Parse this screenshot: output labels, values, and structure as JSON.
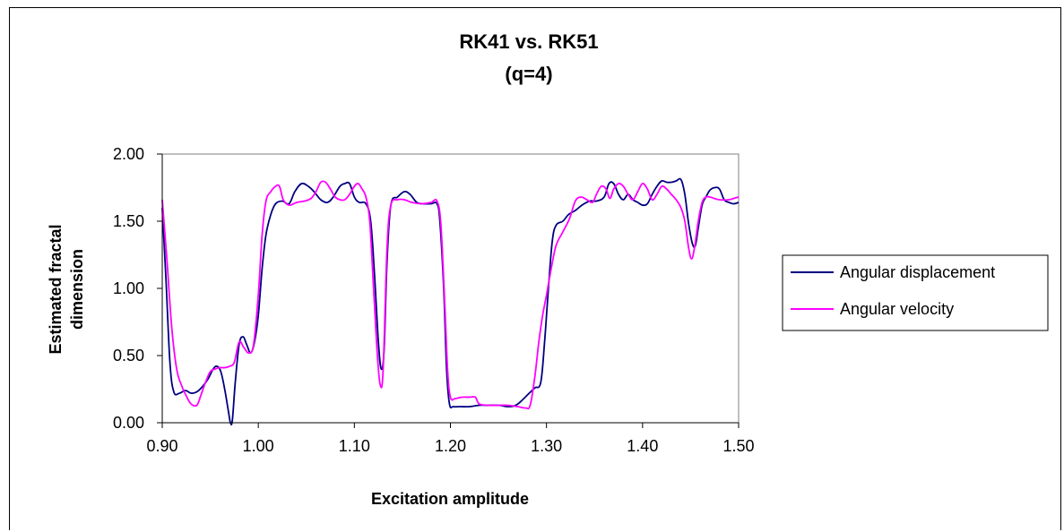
{
  "chart_data": {
    "type": "line",
    "title_lines": [
      "RK41 vs. RK51",
      "(q=4)"
    ],
    "xlabel": "Excitation amplitude",
    "ylabel_lines": [
      "Estimated fractal",
      "dimension"
    ],
    "xlim": [
      0.9,
      1.5
    ],
    "ylim": [
      0,
      2
    ],
    "x_ticks": [
      "0.90",
      "1.00",
      "1.10",
      "1.20",
      "1.30",
      "1.40",
      "1.50"
    ],
    "y_ticks": [
      "0.00",
      "0.50",
      "1.00",
      "1.50",
      "2.00"
    ],
    "grid": false,
    "legend_position": "right",
    "series": [
      {
        "name": "Angular displacement",
        "color": "#000080",
        "points": [
          [
            0.9,
            1.6
          ],
          [
            0.904,
            1.05
          ],
          [
            0.908,
            0.45
          ],
          [
            0.912,
            0.23
          ],
          [
            0.918,
            0.22
          ],
          [
            0.924,
            0.24
          ],
          [
            0.93,
            0.22
          ],
          [
            0.936,
            0.23
          ],
          [
            0.942,
            0.27
          ],
          [
            0.948,
            0.33
          ],
          [
            0.953,
            0.4
          ],
          [
            0.957,
            0.42
          ],
          [
            0.961,
            0.38
          ],
          [
            0.965,
            0.25
          ],
          [
            0.969,
            0.08
          ],
          [
            0.971,
            0.0
          ],
          [
            0.973,
            0.02
          ],
          [
            0.976,
            0.3
          ],
          [
            0.98,
            0.58
          ],
          [
            0.984,
            0.64
          ],
          [
            0.988,
            0.58
          ],
          [
            0.992,
            0.52
          ],
          [
            0.996,
            0.6
          ],
          [
            1.0,
            0.8
          ],
          [
            1.004,
            1.15
          ],
          [
            1.008,
            1.4
          ],
          [
            1.013,
            1.55
          ],
          [
            1.018,
            1.63
          ],
          [
            1.025,
            1.65
          ],
          [
            1.032,
            1.63
          ],
          [
            1.038,
            1.72
          ],
          [
            1.045,
            1.78
          ],
          [
            1.052,
            1.76
          ],
          [
            1.058,
            1.72
          ],
          [
            1.065,
            1.66
          ],
          [
            1.072,
            1.64
          ],
          [
            1.078,
            1.68
          ],
          [
            1.085,
            1.76
          ],
          [
            1.09,
            1.78
          ],
          [
            1.095,
            1.78
          ],
          [
            1.1,
            1.68
          ],
          [
            1.105,
            1.64
          ],
          [
            1.112,
            1.63
          ],
          [
            1.117,
            1.5
          ],
          [
            1.121,
            1.1
          ],
          [
            1.125,
            0.6
          ],
          [
            1.128,
            0.4
          ],
          [
            1.131,
            0.55
          ],
          [
            1.134,
            1.2
          ],
          [
            1.138,
            1.62
          ],
          [
            1.145,
            1.68
          ],
          [
            1.152,
            1.72
          ],
          [
            1.158,
            1.7
          ],
          [
            1.165,
            1.64
          ],
          [
            1.172,
            1.63
          ],
          [
            1.18,
            1.63
          ],
          [
            1.186,
            1.63
          ],
          [
            1.189,
            1.5
          ],
          [
            1.193,
            1.0
          ],
          [
            1.196,
            0.4
          ],
          [
            1.199,
            0.14
          ],
          [
            1.203,
            0.12
          ],
          [
            1.21,
            0.12
          ],
          [
            1.22,
            0.12
          ],
          [
            1.23,
            0.13
          ],
          [
            1.24,
            0.13
          ],
          [
            1.25,
            0.13
          ],
          [
            1.26,
            0.12
          ],
          [
            1.268,
            0.13
          ],
          [
            1.275,
            0.17
          ],
          [
            1.282,
            0.22
          ],
          [
            1.288,
            0.26
          ],
          [
            1.294,
            0.3
          ],
          [
            1.298,
            0.6
          ],
          [
            1.302,
            1.0
          ],
          [
            1.306,
            1.35
          ],
          [
            1.31,
            1.47
          ],
          [
            1.317,
            1.5
          ],
          [
            1.323,
            1.55
          ],
          [
            1.33,
            1.58
          ],
          [
            1.337,
            1.62
          ],
          [
            1.345,
            1.65
          ],
          [
            1.352,
            1.65
          ],
          [
            1.36,
            1.68
          ],
          [
            1.365,
            1.78
          ],
          [
            1.37,
            1.78
          ],
          [
            1.375,
            1.7
          ],
          [
            1.38,
            1.66
          ],
          [
            1.385,
            1.7
          ],
          [
            1.39,
            1.66
          ],
          [
            1.395,
            1.64
          ],
          [
            1.4,
            1.62
          ],
          [
            1.405,
            1.63
          ],
          [
            1.41,
            1.7
          ],
          [
            1.415,
            1.76
          ],
          [
            1.42,
            1.8
          ],
          [
            1.425,
            1.79
          ],
          [
            1.43,
            1.79
          ],
          [
            1.435,
            1.8
          ],
          [
            1.44,
            1.81
          ],
          [
            1.444,
            1.7
          ],
          [
            1.448,
            1.48
          ],
          [
            1.452,
            1.33
          ],
          [
            1.455,
            1.32
          ],
          [
            1.458,
            1.45
          ],
          [
            1.462,
            1.62
          ],
          [
            1.466,
            1.68
          ],
          [
            1.47,
            1.73
          ],
          [
            1.475,
            1.75
          ],
          [
            1.48,
            1.74
          ],
          [
            1.485,
            1.66
          ],
          [
            1.49,
            1.64
          ],
          [
            1.495,
            1.63
          ],
          [
            1.5,
            1.64
          ]
        ]
      },
      {
        "name": "Angular velocity",
        "color": "#FF00FF",
        "points": [
          [
            0.9,
            1.66
          ],
          [
            0.905,
            1.2
          ],
          [
            0.91,
            0.7
          ],
          [
            0.915,
            0.4
          ],
          [
            0.92,
            0.28
          ],
          [
            0.925,
            0.2
          ],
          [
            0.93,
            0.14
          ],
          [
            0.936,
            0.13
          ],
          [
            0.94,
            0.2
          ],
          [
            0.945,
            0.3
          ],
          [
            0.95,
            0.38
          ],
          [
            0.955,
            0.4
          ],
          [
            0.96,
            0.41
          ],
          [
            0.965,
            0.41
          ],
          [
            0.97,
            0.42
          ],
          [
            0.975,
            0.45
          ],
          [
            0.98,
            0.6
          ],
          [
            0.985,
            0.56
          ],
          [
            0.99,
            0.52
          ],
          [
            0.995,
            0.58
          ],
          [
            1.0,
            0.95
          ],
          [
            1.004,
            1.4
          ],
          [
            1.008,
            1.65
          ],
          [
            1.013,
            1.72
          ],
          [
            1.018,
            1.76
          ],
          [
            1.022,
            1.76
          ],
          [
            1.026,
            1.66
          ],
          [
            1.032,
            1.62
          ],
          [
            1.04,
            1.64
          ],
          [
            1.048,
            1.65
          ],
          [
            1.055,
            1.67
          ],
          [
            1.06,
            1.72
          ],
          [
            1.065,
            1.79
          ],
          [
            1.07,
            1.79
          ],
          [
            1.075,
            1.74
          ],
          [
            1.08,
            1.68
          ],
          [
            1.085,
            1.66
          ],
          [
            1.09,
            1.66
          ],
          [
            1.095,
            1.7
          ],
          [
            1.1,
            1.76
          ],
          [
            1.104,
            1.78
          ],
          [
            1.108,
            1.74
          ],
          [
            1.112,
            1.68
          ],
          [
            1.116,
            1.5
          ],
          [
            1.12,
            1.0
          ],
          [
            1.124,
            0.5
          ],
          [
            1.127,
            0.28
          ],
          [
            1.13,
            0.4
          ],
          [
            1.134,
            1.3
          ],
          [
            1.138,
            1.62
          ],
          [
            1.145,
            1.66
          ],
          [
            1.152,
            1.66
          ],
          [
            1.16,
            1.64
          ],
          [
            1.17,
            1.63
          ],
          [
            1.18,
            1.64
          ],
          [
            1.186,
            1.65
          ],
          [
            1.19,
            1.48
          ],
          [
            1.194,
            0.9
          ],
          [
            1.197,
            0.4
          ],
          [
            1.2,
            0.19
          ],
          [
            1.205,
            0.18
          ],
          [
            1.212,
            0.19
          ],
          [
            1.22,
            0.19
          ],
          [
            1.226,
            0.19
          ],
          [
            1.23,
            0.14
          ],
          [
            1.24,
            0.13
          ],
          [
            1.25,
            0.13
          ],
          [
            1.26,
            0.13
          ],
          [
            1.27,
            0.12
          ],
          [
            1.278,
            0.11
          ],
          [
            1.283,
            0.13
          ],
          [
            1.288,
            0.35
          ],
          [
            1.292,
            0.6
          ],
          [
            1.296,
            0.8
          ],
          [
            1.3,
            0.95
          ],
          [
            1.305,
            1.15
          ],
          [
            1.31,
            1.32
          ],
          [
            1.317,
            1.42
          ],
          [
            1.324,
            1.52
          ],
          [
            1.33,
            1.65
          ],
          [
            1.336,
            1.68
          ],
          [
            1.342,
            1.66
          ],
          [
            1.348,
            1.64
          ],
          [
            1.352,
            1.7
          ],
          [
            1.357,
            1.76
          ],
          [
            1.362,
            1.74
          ],
          [
            1.366,
            1.67
          ],
          [
            1.37,
            1.74
          ],
          [
            1.375,
            1.78
          ],
          [
            1.38,
            1.76
          ],
          [
            1.385,
            1.7
          ],
          [
            1.39,
            1.66
          ],
          [
            1.395,
            1.72
          ],
          [
            1.4,
            1.78
          ],
          [
            1.405,
            1.74
          ],
          [
            1.41,
            1.66
          ],
          [
            1.415,
            1.7
          ],
          [
            1.42,
            1.76
          ],
          [
            1.425,
            1.74
          ],
          [
            1.43,
            1.7
          ],
          [
            1.435,
            1.66
          ],
          [
            1.44,
            1.6
          ],
          [
            1.444,
            1.5
          ],
          [
            1.448,
            1.3
          ],
          [
            1.451,
            1.22
          ],
          [
            1.454,
            1.3
          ],
          [
            1.458,
            1.5
          ],
          [
            1.462,
            1.64
          ],
          [
            1.466,
            1.68
          ],
          [
            1.47,
            1.68
          ],
          [
            1.48,
            1.66
          ],
          [
            1.49,
            1.66
          ],
          [
            1.495,
            1.67
          ],
          [
            1.5,
            1.68
          ]
        ]
      }
    ]
  }
}
